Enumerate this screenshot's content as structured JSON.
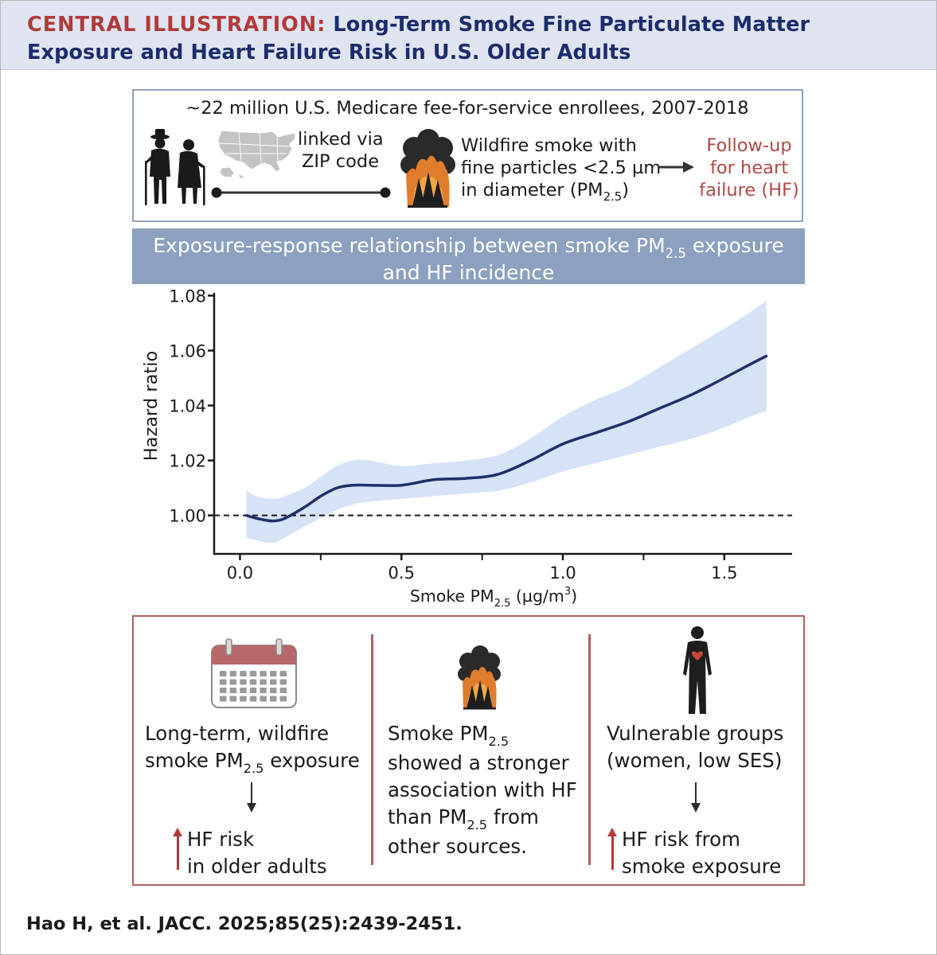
{
  "header": {
    "label": "CENTRAL ILLUSTRATION:",
    "title_line1": "Long-Term Smoke Fine Particulate Matter",
    "title_line2": "Exposure and Heart Failure Risk in U.S. Older Adults"
  },
  "study": {
    "population": "~22 million U.S. Medicare fee-for-service enrollees, 2007-2018",
    "link_line1": "linked via",
    "link_line2": "ZIP code",
    "smoke_line1": "Wildfire smoke with",
    "smoke_line2": "fine particles <2.5 µm",
    "smoke_line3_pre": "in diameter (PM",
    "smoke_line3_sub": "2.5",
    "smoke_line3_post": ")",
    "followup_line1": "Follow-up",
    "followup_line2": "for heart",
    "followup_line3": "failure (HF)",
    "icons": [
      "elderly-couple-icon",
      "us-map-icon",
      "wildfire-icon",
      "arrow-right-icon"
    ]
  },
  "banner": {
    "line1_pre": "Exposure-response relationship between smoke PM",
    "line1_sub": "2.5",
    "line1_post": " exposure",
    "line2": "and HF incidence"
  },
  "chart_data": {
    "type": "line",
    "ylabel": "Hazard ratio",
    "xlabel_pre": "Smoke PM",
    "xlabel_sub": "2.5",
    "xlabel_mid": " (µg/m",
    "xlabel_sup": "3",
    "xlabel_post": ")",
    "xlim": [
      -0.08,
      1.71
    ],
    "ylim": [
      0.986,
      1.081
    ],
    "x_ticks": [
      0.0,
      0.5,
      1.0,
      1.5
    ],
    "x_tick_labels": [
      "0.0",
      "0.5",
      "1.0",
      "1.5"
    ],
    "y_ticks": [
      1.0,
      1.02,
      1.04,
      1.06,
      1.08
    ],
    "y_tick_labels": [
      "1.00",
      "1.02",
      "1.04",
      "1.06",
      "1.08"
    ],
    "reference_line": 1.0,
    "series": [
      {
        "x": [
          0.02,
          0.05,
          0.1,
          0.14,
          0.2,
          0.25,
          0.3,
          0.35,
          0.4,
          0.5,
          0.6,
          0.7,
          0.8,
          0.9,
          1.0,
          1.1,
          1.2,
          1.3,
          1.4,
          1.5,
          1.58,
          1.63
        ],
        "y": [
          1.0,
          0.999,
          0.998,
          0.999,
          1.003,
          1.007,
          1.01,
          1.011,
          1.011,
          1.011,
          1.013,
          1.0135,
          1.015,
          1.02,
          1.026,
          1.03,
          1.034,
          1.039,
          1.044,
          1.05,
          1.055,
          1.058
        ],
        "lower": [
          0.992,
          0.991,
          0.99,
          0.992,
          0.996,
          0.999,
          1.002,
          1.004,
          1.005,
          1.006,
          1.007,
          1.008,
          1.009,
          1.012,
          1.016,
          1.019,
          1.022,
          1.025,
          1.028,
          1.032,
          1.036,
          1.038
        ],
        "upper": [
          1.009,
          1.007,
          1.006,
          1.007,
          1.01,
          1.014,
          1.018,
          1.02,
          1.02,
          1.018,
          1.019,
          1.02,
          1.022,
          1.028,
          1.036,
          1.042,
          1.047,
          1.054,
          1.061,
          1.068,
          1.074,
          1.078
        ],
        "line_color": "#1f2f6b",
        "band_color": "#d6e2f5"
      }
    ]
  },
  "findings": [
    {
      "icon": "calendar-icon",
      "line1": "Long-term, wildfire",
      "line2_pre": "smoke PM",
      "line2_sub": "2.5",
      "line2_post": " exposure",
      "result_line1": "HF risk",
      "result_line2": "in older adults"
    },
    {
      "icon": "wildfire-icon",
      "line1_pre": "Smoke PM",
      "line1_sub": "2.5",
      "line2": "showed a stronger",
      "line3": "association with HF",
      "line4_pre": "than PM",
      "line4_sub": "2.5",
      "line4_post": " from",
      "line5": "other sources."
    },
    {
      "icon": "human-heart-icon",
      "line1": "Vulnerable groups",
      "line2": "(women, low SES)",
      "result_line1": "HF risk from",
      "result_line2": "smoke exposure"
    }
  ],
  "citation": "Hao H, et al. JACC. 2025;85(25):2439-2451.",
  "colors": {
    "header_bg": "#dfe4f0",
    "label_red": "#b13a3a",
    "title_navy": "#1c2c6c",
    "box_blue": "#8fa3c3",
    "box_red": "#b0605f"
  }
}
